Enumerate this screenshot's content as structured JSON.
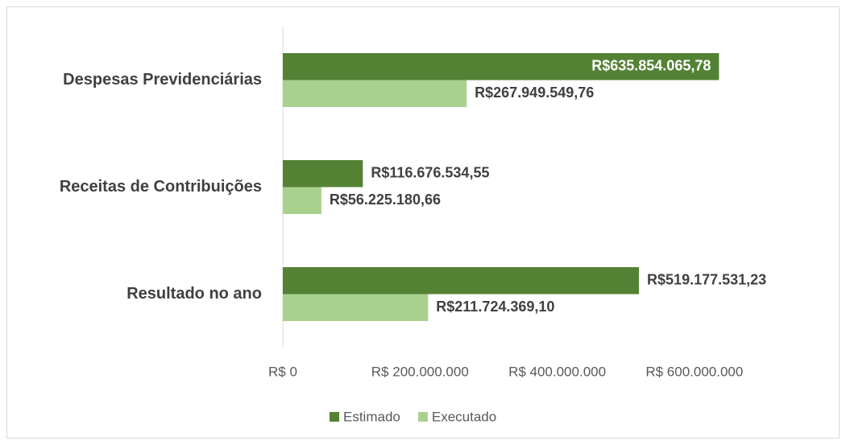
{
  "chart_data": {
    "type": "hbar",
    "categories": [
      "Despesas Previdenciárias",
      "Receitas de Contribuições",
      "Resultado no ano"
    ],
    "series": [
      {
        "name": "Estimado",
        "color": "#548235",
        "values": [
          635854065.78,
          116676534.55,
          519177531.23
        ],
        "value_labels": [
          "R$635.854.065,78",
          "R$116.676.534,55",
          "R$519.177.531,23"
        ]
      },
      {
        "name": "Executado",
        "color": "#a9d18e",
        "values": [
          267949549.76,
          56225180.66,
          211724369.1
        ],
        "value_labels": [
          "R$267.949.549,76",
          "R$56.225.180,66",
          "R$211.724.369,10"
        ]
      }
    ],
    "xlim": [
      0,
      700000000
    ],
    "xticks": [
      {
        "value": 0,
        "label": "R$ 0"
      },
      {
        "value": 200000000,
        "label": "R$ 200.000.000"
      },
      {
        "value": 400000000,
        "label": "R$ 400.000.000"
      },
      {
        "value": 600000000,
        "label": "R$ 600.000.000"
      }
    ],
    "legend": "bottom"
  }
}
